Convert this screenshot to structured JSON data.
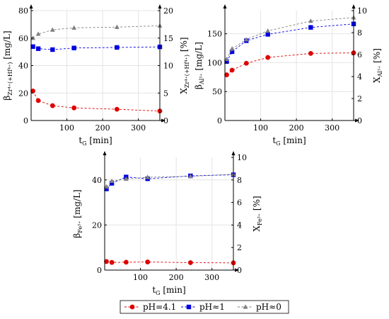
{
  "legend": {
    "entries": [
      {
        "label": "pH=4.1",
        "color": "#e00000",
        "marker": "circle"
      },
      {
        "label": "pH≈1",
        "color": "#0000e0",
        "marker": "square"
      },
      {
        "label": "pH≈0",
        "color": "#808080",
        "marker": "triangle"
      }
    ]
  },
  "chart_data": [
    {
      "type": "line",
      "xlabel": {
        "main": "t",
        "sub": "G",
        "rest": " [min]"
      },
      "ylabel": {
        "main": "β",
        "sub": "Zr⁴⁺(+Hf⁴⁺)",
        "rest": " [mg/L]"
      },
      "y2label": {
        "main": "X",
        "sub": "Zr⁴⁺(+Hf⁴⁺)",
        "rest": " [%]"
      },
      "xlim": [
        0,
        360
      ],
      "ylim": [
        0,
        80
      ],
      "y2lim": [
        0,
        20
      ],
      "xticks": [
        100,
        200,
        300
      ],
      "yticks": [
        0,
        20,
        40,
        60,
        80
      ],
      "y2ticks": [
        0,
        5,
        10,
        15,
        20
      ],
      "grid": true,
      "series": [
        {
          "name": "pH=4.1",
          "color": "#e00000",
          "marker": "circle",
          "x": [
            5,
            20,
            60,
            120,
            240,
            360
          ],
          "y": [
            21.5,
            14.5,
            10.8,
            9.2,
            8.2,
            6.9
          ]
        },
        {
          "name": "pH≈1",
          "color": "#0000e0",
          "marker": "square",
          "x": [
            5,
            20,
            60,
            120,
            240,
            360
          ],
          "y": [
            53.8,
            52.3,
            51.6,
            52.8,
            53.2,
            53.6
          ]
        },
        {
          "name": "pH≈0",
          "color": "#808080",
          "marker": "triangle",
          "x": [
            5,
            20,
            60,
            120,
            240,
            360
          ],
          "y": [
            60,
            63,
            66,
            67.5,
            68,
            69
          ]
        }
      ]
    },
    {
      "type": "line",
      "xlabel": {
        "main": "t",
        "sub": "G",
        "rest": " [min]"
      },
      "ylabel": {
        "main": "β",
        "sub": "Al³⁺",
        "rest": " [mg/L]"
      },
      "y2label": {
        "main": "X",
        "sub": "Al³⁺",
        "rest": " [%]"
      },
      "xlim": [
        0,
        360
      ],
      "ylim": [
        0,
        190
      ],
      "y2lim": [
        0,
        10
      ],
      "xticks": [
        100,
        200,
        300
      ],
      "yticks": [
        0,
        50,
        100,
        150
      ],
      "y2ticks": [
        0,
        2,
        4,
        6,
        8,
        10
      ],
      "grid": true,
      "series": [
        {
          "name": "pH=4.1",
          "color": "#e00000",
          "marker": "circle",
          "x": [
            5,
            20,
            60,
            120,
            240,
            360
          ],
          "y": [
            79,
            87,
            99,
            109,
            116,
            117
          ]
        },
        {
          "name": "pH≈1",
          "color": "#0000e0",
          "marker": "square",
          "x": [
            5,
            20,
            60,
            120,
            240,
            360
          ],
          "y": [
            102,
            119,
            138,
            149,
            161,
            167
          ]
        },
        {
          "name": "pH≈0",
          "color": "#808080",
          "marker": "triangle",
          "x": [
            5,
            20,
            60,
            120,
            240,
            360
          ],
          "y": [
            106,
            124,
            140,
            155,
            172,
            178
          ]
        }
      ]
    },
    {
      "type": "line",
      "xlabel": {
        "main": "t",
        "sub": "G",
        "rest": " [min]"
      },
      "ylabel": {
        "main": "β",
        "sub": "Fe³⁺",
        "rest": " [mg/L]"
      },
      "y2label": {
        "main": "X",
        "sub": "Fe³⁺",
        "rest": " [%]"
      },
      "xlim": [
        0,
        360
      ],
      "ylim": [
        0,
        50
      ],
      "y2lim": [
        0,
        10
      ],
      "xticks": [
        100,
        200,
        300
      ],
      "yticks": [
        0,
        20,
        40
      ],
      "y2ticks": [
        0,
        2,
        4,
        6,
        8,
        10
      ],
      "grid": true,
      "series": [
        {
          "name": "pH=4.1",
          "color": "#e00000",
          "marker": "circle",
          "x": [
            5,
            20,
            60,
            120,
            240,
            360
          ],
          "y": [
            3.8,
            3.4,
            3.5,
            3.6,
            3.3,
            3.2
          ]
        },
        {
          "name": "pH≈1",
          "color": "#0000e0",
          "marker": "square",
          "x": [
            5,
            20,
            60,
            120,
            240,
            360
          ],
          "y": [
            36,
            38.5,
            41.3,
            40.5,
            41.8,
            42.3
          ]
        },
        {
          "name": "pH≈0",
          "color": "#808080",
          "marker": "triangle",
          "x": [
            5,
            20,
            60,
            120,
            240,
            360
          ],
          "y": [
            37,
            39.5,
            40.4,
            41.2,
            41.6,
            42.5
          ]
        }
      ]
    }
  ]
}
